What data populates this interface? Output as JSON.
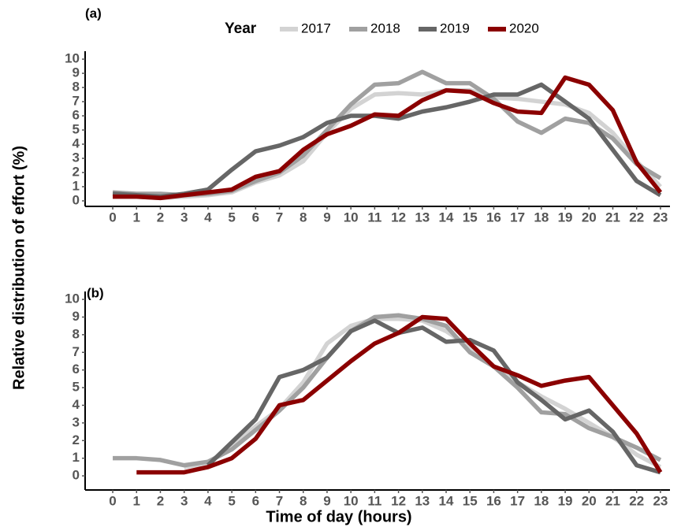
{
  "chart_data": [
    {
      "type": "line",
      "label": "(a)",
      "legend_title": "Year",
      "legend": "top",
      "y_label": "Relative distribution of effort (%)",
      "x": [
        0,
        1,
        2,
        3,
        4,
        5,
        6,
        7,
        8,
        9,
        10,
        11,
        12,
        13,
        14,
        15,
        16,
        17,
        18,
        19,
        20,
        21,
        22,
        23
      ],
      "xlim": [
        -1.16,
        23.4
      ],
      "xticks": [
        0,
        1,
        2,
        3,
        4,
        5,
        6,
        7,
        8,
        9,
        10,
        11,
        12,
        13,
        14,
        15,
        16,
        17,
        18,
        19,
        20,
        21,
        22,
        23
      ],
      "ylim": [
        -0.39,
        10.56
      ],
      "yticks": [
        0,
        1,
        2,
        3,
        4,
        5,
        6,
        7,
        8,
        9,
        10
      ],
      "series": [
        {
          "name": "2017",
          "color": "#d3d3d3",
          "values": [
            0.3,
            0.3,
            0.2,
            0.3,
            0.4,
            0.6,
            1.3,
            1.8,
            2.8,
            4.8,
            6.5,
            7.5,
            7.6,
            7.5,
            7.8,
            7.8,
            7.3,
            7.2,
            7.0,
            6.8,
            6.2,
            4.8,
            2.8,
            1.0
          ]
        },
        {
          "name": "2018",
          "color": "#a0a0a0",
          "values": [
            0.6,
            0.5,
            0.5,
            0.4,
            0.5,
            0.7,
            1.4,
            2.0,
            3.2,
            5.0,
            6.8,
            8.2,
            8.3,
            9.1,
            8.3,
            8.3,
            7.2,
            5.6,
            4.8,
            5.8,
            5.5,
            4.4,
            2.6,
            1.6
          ]
        },
        {
          "name": "2019",
          "color": "#666666",
          "values": [
            0.5,
            0.4,
            0.3,
            0.5,
            0.8,
            2.2,
            3.5,
            3.9,
            4.5,
            5.5,
            6.0,
            6.0,
            5.8,
            6.3,
            6.6,
            7.0,
            7.5,
            7.5,
            8.2,
            7.0,
            5.8,
            3.6,
            1.4,
            0.4
          ]
        },
        {
          "name": "2020",
          "color": "#8b0000",
          "values": [
            0.3,
            0.3,
            0.2,
            0.4,
            0.6,
            0.8,
            1.7,
            2.1,
            3.6,
            4.7,
            5.3,
            6.1,
            6.0,
            7.1,
            7.8,
            7.7,
            6.9,
            6.3,
            6.2,
            8.7,
            8.2,
            6.4,
            2.7,
            0.6
          ]
        }
      ]
    },
    {
      "type": "line",
      "label": "(b)",
      "x_label": "Time of day (hours)",
      "x": [
        0,
        1,
        2,
        3,
        4,
        5,
        6,
        7,
        8,
        9,
        10,
        11,
        12,
        13,
        14,
        15,
        16,
        17,
        18,
        19,
        20,
        21,
        22,
        23
      ],
      "xlim": [
        -1.16,
        23.4
      ],
      "xticks": [
        0,
        1,
        2,
        3,
        4,
        5,
        6,
        7,
        8,
        9,
        10,
        11,
        12,
        13,
        14,
        15,
        16,
        17,
        18,
        19,
        20,
        21,
        22,
        23
      ],
      "ylim": [
        -0.8,
        10.45
      ],
      "yticks": [
        0,
        1,
        2,
        3,
        4,
        5,
        6,
        7,
        8,
        9,
        10
      ],
      "series": [
        {
          "name": "2017",
          "color": "#d3d3d3",
          "values": [
            null,
            null,
            null,
            0.5,
            0.7,
            1.7,
            2.8,
            3.8,
            5.3,
            7.5,
            8.5,
            8.9,
            8.9,
            8.8,
            8.2,
            7.3,
            6.2,
            5.3,
            4.5,
            3.8,
            3.0,
            2.2,
            1.2,
            0.5
          ]
        },
        {
          "name": "2018",
          "color": "#a0a0a0",
          "values": [
            1.0,
            1.0,
            0.9,
            0.6,
            0.8,
            1.5,
            2.6,
            3.7,
            5.0,
            6.7,
            8.2,
            9.0,
            9.1,
            8.9,
            8.5,
            7.0,
            6.2,
            5.0,
            3.6,
            3.5,
            2.7,
            2.2,
            1.6,
            0.9
          ]
        },
        {
          "name": "2019",
          "color": "#666666",
          "values": [
            null,
            null,
            null,
            null,
            0.6,
            1.9,
            3.2,
            5.6,
            6.0,
            6.7,
            8.2,
            8.8,
            8.1,
            8.4,
            7.6,
            7.7,
            7.1,
            5.3,
            4.3,
            3.2,
            3.7,
            2.5,
            0.6,
            0.2
          ]
        },
        {
          "name": "2020",
          "color": "#8b0000",
          "values": [
            null,
            0.2,
            0.2,
            0.2,
            0.5,
            1.0,
            2.1,
            4.0,
            4.3,
            5.4,
            6.5,
            7.5,
            8.1,
            9.0,
            8.9,
            7.5,
            6.2,
            5.7,
            5.1,
            5.4,
            5.6,
            4.0,
            2.4,
            0.2
          ]
        }
      ]
    }
  ]
}
